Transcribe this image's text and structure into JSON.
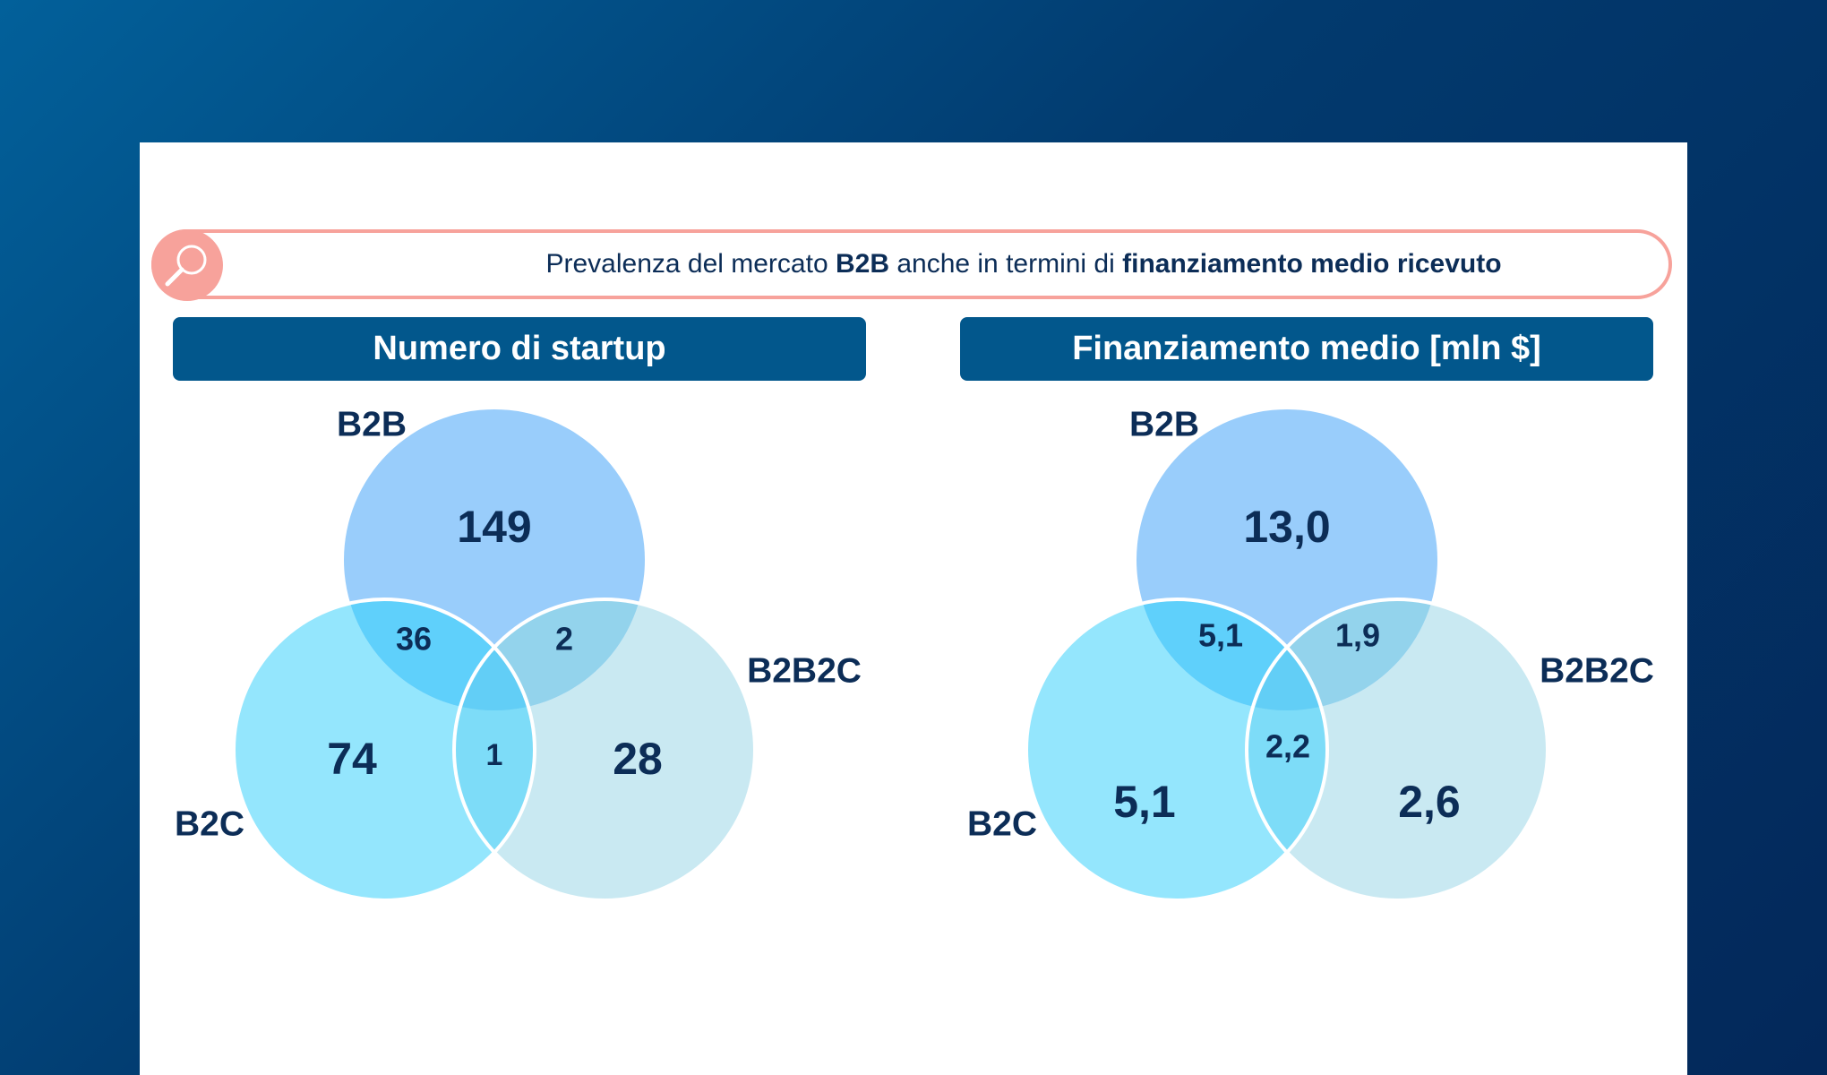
{
  "banner": {
    "icon": "magnifier-icon",
    "text_1": "Prevalenza del mercato ",
    "bold_1": "B2B",
    "text_2": " anche in termini di ",
    "bold_2": "finanziamento medio ricevuto"
  },
  "colors": {
    "b2b": "#99cdfb",
    "b2c": "#94e6fd",
    "b2b2c": "#c9e9f2",
    "header": "#02578c",
    "accent": "#f7a29b",
    "text": "#0c2d57"
  },
  "chart_data": [
    {
      "type": "venn",
      "title": "Numero di startup",
      "sets": [
        "B2B",
        "B2C",
        "B2B2C"
      ],
      "regions": {
        "B2B": "149",
        "B2C": "74",
        "B2B2C": "28",
        "B2B&B2C": "36",
        "B2B&B2B2C": "2",
        "B2C&B2B2C": "1"
      }
    },
    {
      "type": "venn",
      "title": "Finanziamento medio [mln $]",
      "sets": [
        "B2B",
        "B2C",
        "B2B2C"
      ],
      "regions": {
        "B2B": "13,0",
        "B2C": "5,1",
        "B2B2C": "2,6",
        "B2B&B2C": "5,1",
        "B2B&B2B2C": "1,9",
        "B2C&B2B2C": "2,2"
      }
    }
  ]
}
